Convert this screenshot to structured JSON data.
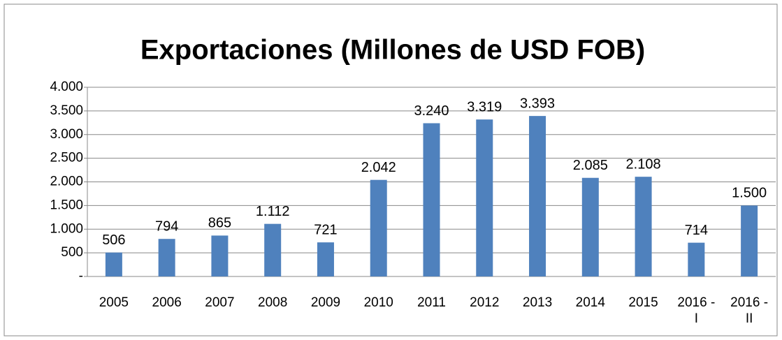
{
  "chart_data": {
    "type": "bar",
    "title": "Exportaciones (Millones de USD FOB)",
    "categories": [
      "2005",
      "2006",
      "2007",
      "2008",
      "2009",
      "2010",
      "2011",
      "2012",
      "2013",
      "2014",
      "2015",
      "2016 - I",
      "2016 - II"
    ],
    "values": [
      506,
      794,
      865,
      1112,
      721,
      2042,
      3240,
      3319,
      3393,
      2085,
      2108,
      714,
      1500
    ],
    "value_labels": [
      "506",
      "794",
      "865",
      "1.112",
      "721",
      "2.042",
      "3.240",
      "3.319",
      "3.393",
      "2.085",
      "2.108",
      "714",
      "1.500"
    ],
    "color": "#4f81bd",
    "ylim": [
      0,
      4000
    ],
    "yticks": [
      {
        "value": 0,
        "label": "-"
      },
      500,
      {
        "value": 1000,
        "label": "1.000"
      },
      {
        "value": 1500,
        "label": "1.500"
      },
      {
        "value": 2000,
        "label": "2.000"
      },
      {
        "value": 2500,
        "label": "2.500"
      },
      {
        "value": 3000,
        "label": "3.000"
      },
      {
        "value": 3500,
        "label": "3.500"
      },
      {
        "value": 4000,
        "label": "4.000"
      }
    ],
    "grid": true
  }
}
